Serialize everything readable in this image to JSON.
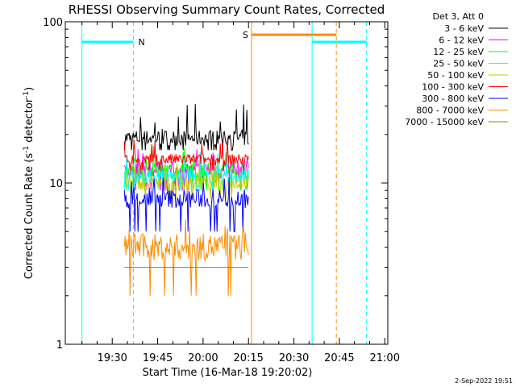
{
  "chart_data": {
    "type": "line",
    "title": "RHESSI Observing Summary Count Rates, Corrected",
    "xlabel": "Start Time (16-Mar-18 19:20:02)",
    "ylabel_main": "Corrected Count Rate (s",
    "ylabel_sup1": "-1",
    "ylabel_mid": " detector",
    "ylabel_sup2": "-1",
    "ylabel_end": ")",
    "y_scale": "log",
    "ylim": [
      1,
      100
    ],
    "y_ticks": [
      {
        "value": 1,
        "label": "1"
      },
      {
        "value": 10,
        "label": "10"
      },
      {
        "value": 100,
        "label": "100"
      }
    ],
    "x_ticks": [
      {
        "minute": 30,
        "label": "19:30"
      },
      {
        "minute": 45,
        "label": "19:45"
      },
      {
        "minute": 60,
        "label": "20:00"
      },
      {
        "minute": 75,
        "label": "20:15"
      },
      {
        "minute": 90,
        "label": "20:30"
      },
      {
        "minute": 105,
        "label": "20:45"
      },
      {
        "minute": 120,
        "label": "21:00"
      }
    ],
    "legend_header": "Det 3, Att 0",
    "series": [
      {
        "name": "3 - 6 keV",
        "color": "#000000",
        "start_min": 34,
        "end_min": 75,
        "median": 19,
        "max": 31,
        "min": 16
      },
      {
        "name": "6 - 12 keV",
        "color": "#ff00ff",
        "start_min": 34,
        "end_min": 75,
        "median": 12,
        "max": 18,
        "min": 9
      },
      {
        "name": "12 - 25 keV",
        "color": "#00ff00",
        "start_min": 34,
        "end_min": 75,
        "median": 12,
        "max": 17,
        "min": 9
      },
      {
        "name": "25 - 50 keV",
        "color": "#00ffff",
        "start_min": 34,
        "end_min": 75,
        "median": 11,
        "max": 16,
        "min": 9
      },
      {
        "name": "50 - 100 keV",
        "color": "#c8c800",
        "start_min": 34,
        "end_min": 75,
        "median": 10,
        "max": 14,
        "min": 8
      },
      {
        "name": "100 - 300 keV",
        "color": "#ff0000",
        "start_min": 34,
        "end_min": 75,
        "median": 14,
        "max": 19,
        "min": 12
      },
      {
        "name": "300 - 800 keV",
        "color": "#0000ff",
        "start_min": 34,
        "end_min": 75,
        "median": 8,
        "max": 11,
        "min": 5
      },
      {
        "name": "800 - 7000 keV",
        "color": "#ff8c00",
        "start_min": 34,
        "end_min": 75,
        "median": 4,
        "max": 6,
        "min": 2
      },
      {
        "name": "7000 - 15000 keV",
        "color": "#8b8b00",
        "start_min": 34,
        "end_min": 75,
        "median": 3,
        "max": 3,
        "min": 3
      }
    ],
    "intervals": [
      {
        "label": "N",
        "color": "#00ffff",
        "start_min": 20,
        "end_min": 37,
        "level": 75
      },
      {
        "label": "",
        "color": "#00ffff",
        "start_min": 96,
        "end_min": 114,
        "level": 75
      },
      {
        "label": "S",
        "color": "#ff8c00",
        "start_min": 76,
        "end_min": 104,
        "level": 83
      }
    ],
    "vlines": [
      {
        "minute": 20,
        "color": "#00ffff",
        "style": "solid"
      },
      {
        "minute": 37,
        "color": "#00ffff",
        "style": "dashed"
      },
      {
        "minute": 96,
        "color": "#00ffff",
        "style": "solid"
      },
      {
        "minute": 114,
        "color": "#00ffff",
        "style": "dashed"
      },
      {
        "minute": 76,
        "color": "#ff8c00",
        "style": "solid"
      },
      {
        "minute": 104,
        "color": "#ff8c00",
        "style": "dashed"
      }
    ],
    "footer_date": "2-Sep-2022 19:51"
  }
}
